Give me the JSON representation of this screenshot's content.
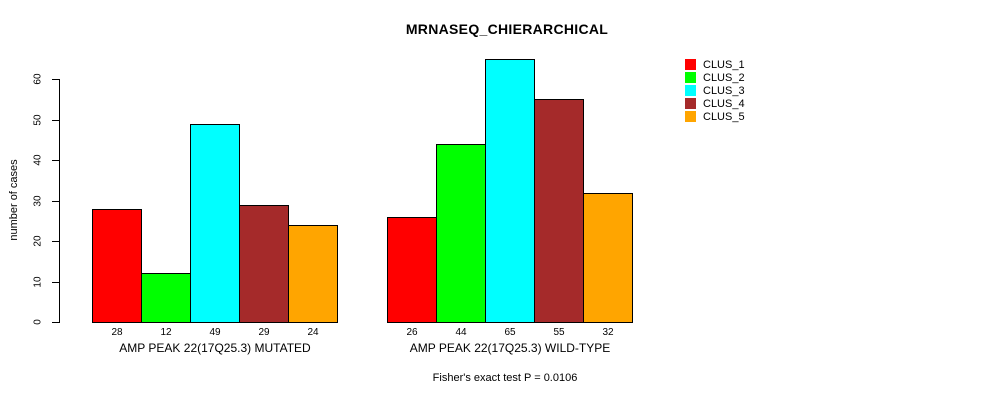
{
  "title": "MRNASEQ_CHIERARCHICAL",
  "footer": "Fisher's exact test P = 0.0106",
  "chart_data": {
    "type": "bar",
    "title": "MRNASEQ_CHIERARCHICAL",
    "xlabel": "",
    "ylabel": "number of cases",
    "ylim": [
      0,
      65
    ],
    "yticks": [
      0,
      10,
      20,
      30,
      40,
      50,
      60
    ],
    "grid": false,
    "bar_values_shown": true,
    "annotation": "Fisher's exact test P = 0.0106",
    "series": [
      "CLUS_1",
      "CLUS_2",
      "CLUS_3",
      "CLUS_4",
      "CLUS_5"
    ],
    "bar_colors": [
      "#ff0000",
      "#00ff00",
      "#00ffff",
      "#a52a2a",
      "#ffa500"
    ],
    "groups": [
      {
        "label": "AMP PEAK 22(17Q25.3) MUTATED",
        "values": [
          28,
          12,
          49,
          29,
          24
        ]
      },
      {
        "label": "AMP PEAK 22(17Q25.3) WILD-TYPE",
        "values": [
          26,
          44,
          65,
          55,
          32
        ]
      }
    ],
    "legend": {
      "position": "top-right",
      "entries": [
        {
          "label": "CLUS_1",
          "color": "#ff0000"
        },
        {
          "label": "CLUS_2",
          "color": "#00ff00"
        },
        {
          "label": "CLUS_3",
          "color": "#00ffff"
        },
        {
          "label": "CLUS_4",
          "color": "#a52a2a"
        },
        {
          "label": "CLUS_5",
          "color": "#ffa500"
        }
      ]
    }
  }
}
